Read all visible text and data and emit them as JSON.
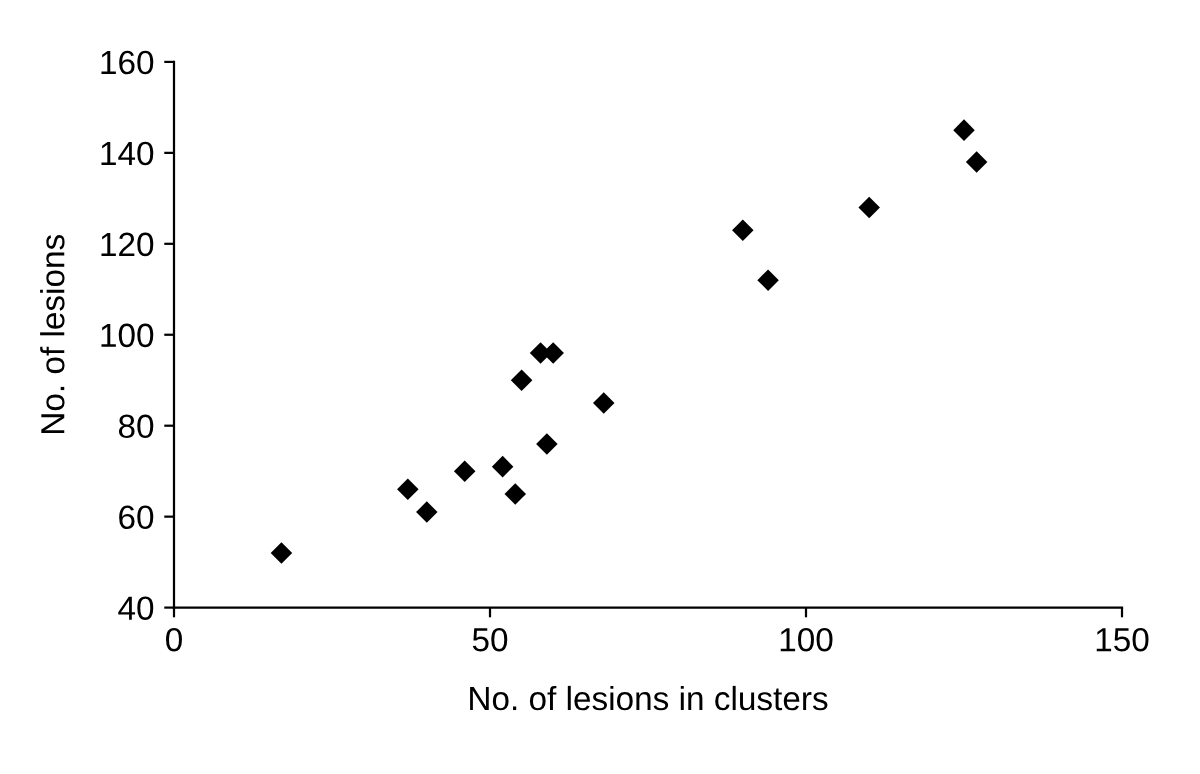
{
  "chart_data": {
    "type": "scatter",
    "xlabel": "No. of lesions in clusters",
    "ylabel": "No. of lesions",
    "x": [
      17,
      37,
      40,
      46,
      52,
      54,
      55,
      58,
      60,
      59,
      68,
      90,
      94,
      110,
      125,
      127
    ],
    "values": [
      52,
      66,
      61,
      70,
      71,
      65,
      90,
      96,
      96,
      76,
      85,
      123,
      112,
      128,
      145,
      138
    ],
    "color": "#000000",
    "marker": "diamond",
    "xlim": [
      0,
      150
    ],
    "xticks": [
      0,
      50,
      100,
      150
    ],
    "ylim": [
      40,
      160
    ],
    "yticks": [
      40,
      60,
      80,
      100,
      120,
      140,
      160
    ],
    "grid": false
  }
}
